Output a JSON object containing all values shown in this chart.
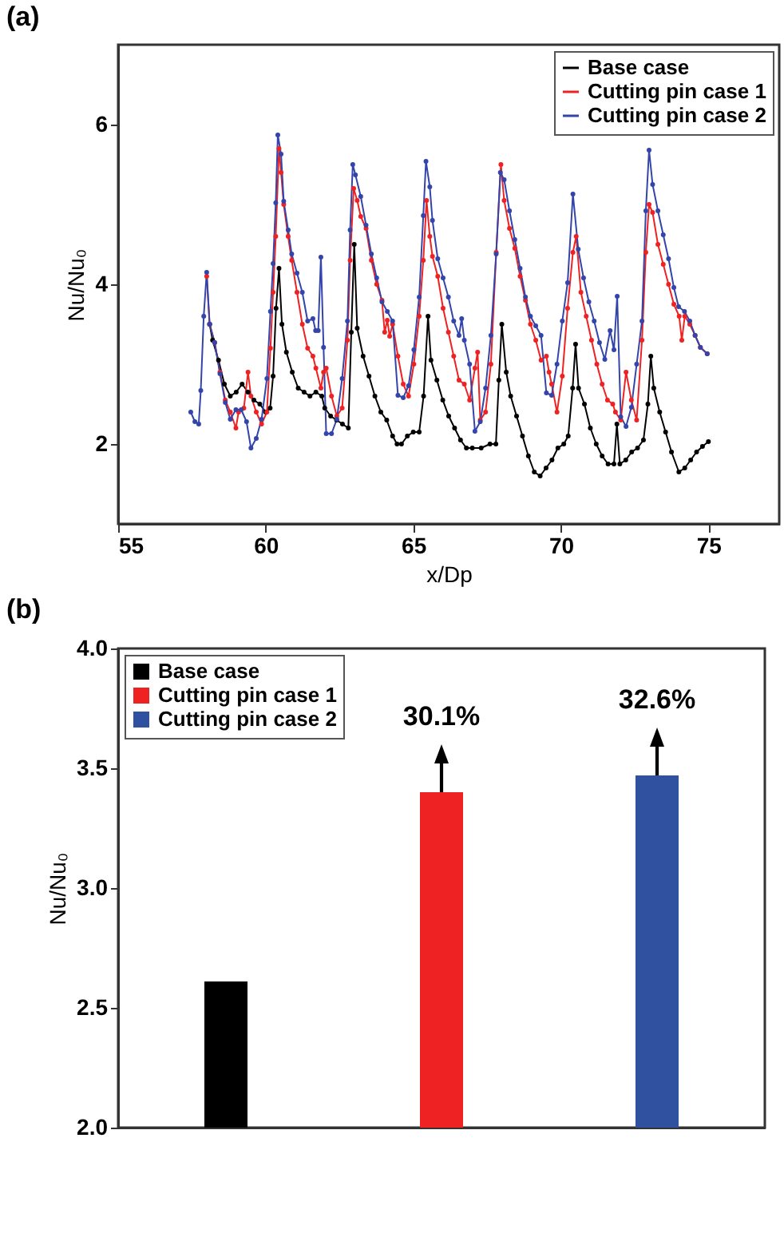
{
  "chart_data": [
    {
      "type": "line",
      "title": "(a)",
      "xlabel": "x/Dp",
      "ylabel": "Nu/Nu₀",
      "xlim": [
        55,
        77.4
      ],
      "ylim": [
        1,
        7
      ],
      "xticks": [
        55,
        60,
        65,
        70,
        75
      ],
      "yticks": [
        2,
        4,
        6
      ],
      "legend": "top right",
      "marker": "circle",
      "series": [
        {
          "name": "Base case",
          "color": "#000000",
          "x": [
            58.1,
            58.2,
            58.4,
            58.6,
            58.8,
            59.0,
            59.2,
            59.4,
            59.6,
            59.8,
            60.0,
            60.15,
            60.25,
            60.35,
            60.45,
            60.55,
            60.7,
            60.9,
            61.1,
            61.3,
            61.5,
            61.7,
            61.9,
            62.0,
            62.2,
            62.4,
            62.6,
            62.8,
            62.9,
            63.0,
            63.1,
            63.3,
            63.5,
            63.7,
            63.9,
            64.1,
            64.3,
            64.45,
            64.6,
            64.8,
            65.0,
            65.2,
            65.35,
            65.5,
            65.6,
            65.8,
            66.0,
            66.2,
            66.4,
            66.6,
            66.8,
            67.0,
            67.3,
            67.6,
            67.8,
            67.9,
            68.0,
            68.15,
            68.3,
            68.5,
            68.7,
            68.9,
            69.1,
            69.3,
            69.5,
            69.7,
            69.9,
            70.1,
            70.25,
            70.4,
            70.5,
            70.6,
            70.8,
            71.0,
            71.2,
            71.4,
            71.6,
            71.8,
            71.9,
            72.0,
            72.2,
            72.4,
            72.6,
            72.8,
            72.95,
            73.05,
            73.15,
            73.35,
            73.55,
            73.75,
            74.0,
            74.2,
            74.4,
            74.6,
            74.8,
            75.0
          ],
          "values": [
            3.5,
            3.3,
            3.05,
            2.75,
            2.6,
            2.65,
            2.75,
            2.65,
            2.55,
            2.5,
            2.4,
            2.45,
            2.85,
            3.7,
            4.2,
            3.5,
            3.15,
            2.9,
            2.7,
            2.65,
            2.6,
            2.65,
            2.6,
            2.45,
            2.35,
            2.3,
            2.25,
            2.2,
            3.4,
            4.5,
            3.45,
            3.1,
            2.85,
            2.6,
            2.4,
            2.3,
            2.1,
            2.0,
            2.0,
            2.1,
            2.15,
            2.15,
            2.6,
            3.6,
            3.05,
            2.8,
            2.55,
            2.35,
            2.2,
            2.05,
            1.95,
            1.95,
            1.95,
            2.0,
            2.0,
            2.8,
            3.5,
            2.9,
            2.6,
            2.35,
            2.1,
            1.85,
            1.65,
            1.6,
            1.7,
            1.8,
            1.95,
            2.0,
            2.1,
            2.7,
            3.25,
            2.7,
            2.5,
            2.2,
            2.0,
            1.85,
            1.75,
            1.75,
            2.25,
            1.75,
            1.8,
            1.9,
            1.95,
            2.05,
            2.5,
            3.1,
            2.7,
            2.4,
            2.15,
            1.9,
            1.65,
            1.7,
            1.8,
            1.9,
            1.97,
            2.03
          ]
        },
        {
          "name": "Cutting pin case 1",
          "color": "#ee2222",
          "x": [
            58.0,
            58.1,
            58.27,
            58.45,
            58.63,
            58.8,
            58.99,
            59.08,
            59.26,
            59.4,
            59.5,
            59.68,
            59.86,
            60.04,
            60.16,
            60.25,
            60.34,
            60.45,
            60.52,
            60.61,
            60.76,
            60.88,
            61.06,
            61.24,
            61.42,
            61.6,
            61.7,
            61.87,
            61.96,
            62.05,
            62.23,
            62.41,
            62.59,
            62.77,
            62.86,
            62.98,
            63.1,
            63.22,
            63.4,
            63.58,
            63.76,
            63.94,
            64.03,
            64.12,
            64.2,
            64.3,
            64.48,
            64.66,
            64.84,
            65.02,
            65.2,
            65.34,
            65.45,
            65.56,
            65.65,
            65.83,
            66.01,
            66.19,
            66.37,
            66.55,
            66.73,
            66.91,
            67.09,
            67.18,
            67.27,
            67.45,
            67.63,
            67.81,
            67.97,
            68.08,
            68.26,
            68.44,
            68.62,
            68.8,
            68.97,
            69.15,
            69.33,
            69.51,
            69.6,
            69.69,
            69.87,
            70.05,
            70.23,
            70.41,
            70.52,
            70.68,
            70.86,
            71.04,
            71.22,
            71.4,
            71.58,
            71.76,
            71.85,
            72.03,
            72.21,
            72.39,
            72.57,
            72.75,
            72.88,
            72.99,
            73.11,
            73.29,
            73.47,
            73.65,
            73.83,
            74.01,
            74.1,
            74.2,
            74.37,
            74.55,
            74.73,
            74.96
          ],
          "values": [
            4.1,
            3.5,
            3.27,
            2.9,
            2.55,
            2.4,
            2.2,
            2.4,
            2.45,
            2.9,
            2.6,
            2.4,
            2.25,
            2.4,
            3.2,
            3.9,
            4.6,
            5.7,
            5.4,
            5.0,
            4.6,
            4.3,
            3.9,
            3.5,
            3.2,
            3.1,
            2.95,
            2.7,
            2.9,
            2.95,
            2.6,
            2.35,
            2.45,
            3.3,
            4.3,
            5.2,
            5.05,
            4.85,
            4.7,
            4.3,
            4.0,
            3.8,
            3.4,
            3.55,
            3.35,
            3.5,
            3.1,
            2.75,
            2.6,
            3.0,
            3.6,
            4.3,
            5.05,
            4.6,
            4.35,
            4.1,
            3.7,
            3.4,
            3.1,
            2.8,
            2.75,
            2.55,
            2.95,
            3.15,
            2.3,
            2.4,
            3.0,
            4.4,
            5.5,
            5.05,
            4.7,
            4.45,
            4.1,
            3.8,
            3.5,
            3.3,
            3.05,
            3.1,
            2.9,
            2.75,
            2.4,
            2.85,
            3.7,
            4.4,
            4.6,
            3.9,
            3.6,
            3.3,
            3.0,
            2.75,
            2.55,
            2.5,
            2.4,
            2.3,
            2.9,
            2.55,
            2.3,
            3.3,
            4.4,
            5.0,
            4.9,
            4.5,
            4.25,
            4.0,
            3.75,
            3.6,
            3.3,
            3.6,
            3.5,
            3.36,
            3.21,
            3.13
          ]
        },
        {
          "name": "Cutting pin case 2",
          "color": "#3344aa",
          "x": [
            57.46,
            57.6,
            57.73,
            57.8,
            57.9,
            58.0,
            58.1,
            58.27,
            58.45,
            58.63,
            58.8,
            58.99,
            59.17,
            59.35,
            59.5,
            59.68,
            59.86,
            60.04,
            60.16,
            60.25,
            60.34,
            60.41,
            60.52,
            60.61,
            60.76,
            60.88,
            61.06,
            61.24,
            61.42,
            61.6,
            61.69,
            61.78,
            61.87,
            61.96,
            62.05,
            62.23,
            62.41,
            62.59,
            62.77,
            62.86,
            62.95,
            63.04,
            63.22,
            63.4,
            63.58,
            63.76,
            63.94,
            64.12,
            64.3,
            64.48,
            64.66,
            64.84,
            65.02,
            65.2,
            65.34,
            65.43,
            65.56,
            65.65,
            65.83,
            66.01,
            66.19,
            66.37,
            66.55,
            66.64,
            66.73,
            66.91,
            67.09,
            67.27,
            67.45,
            67.63,
            67.81,
            67.95,
            68.08,
            68.26,
            68.44,
            68.62,
            68.8,
            68.97,
            69.15,
            69.33,
            69.51,
            69.69,
            69.87,
            70.05,
            70.23,
            70.41,
            70.59,
            70.77,
            70.95,
            71.13,
            71.31,
            71.49,
            71.67,
            71.8,
            71.91,
            72.03,
            72.21,
            72.39,
            72.57,
            72.75,
            72.88,
            72.99,
            73.11,
            73.29,
            73.47,
            73.65,
            73.83,
            73.99,
            74.19,
            74.37,
            74.55,
            74.73,
            74.96
          ],
          "values": [
            2.4,
            2.28,
            2.25,
            2.67,
            3.6,
            4.15,
            3.5,
            3.27,
            2.88,
            2.52,
            2.31,
            2.43,
            2.43,
            2.28,
            1.95,
            2.07,
            2.31,
            2.82,
            3.66,
            4.26,
            5.02,
            5.87,
            5.63,
            5.04,
            4.68,
            4.38,
            4.14,
            3.9,
            3.54,
            3.57,
            3.42,
            3.42,
            4.34,
            3.21,
            2.13,
            2.13,
            2.31,
            2.82,
            3.54,
            4.68,
            5.5,
            5.37,
            5.1,
            4.74,
            4.38,
            4.08,
            3.78,
            3.66,
            3.54,
            2.61,
            2.58,
            2.73,
            3.18,
            3.84,
            4.86,
            5.54,
            5.22,
            4.8,
            4.32,
            4.08,
            3.84,
            3.54,
            3.36,
            3.57,
            3.3,
            3.0,
            2.16,
            2.28,
            2.7,
            3.36,
            4.38,
            5.4,
            5.31,
            4.92,
            4.56,
            4.2,
            3.84,
            3.6,
            3.48,
            3.36,
            2.64,
            2.61,
            3.0,
            3.54,
            4.02,
            5.13,
            4.44,
            4.08,
            3.78,
            3.54,
            3.27,
            3.06,
            3.42,
            3.18,
            3.85,
            2.34,
            2.22,
            2.46,
            3.0,
            3.54,
            4.92,
            5.68,
            5.25,
            4.92,
            4.62,
            4.32,
            3.96,
            3.72,
            3.66,
            3.54,
            3.36,
            3.21,
            3.13
          ]
        }
      ]
    },
    {
      "type": "bar",
      "title": "(b)",
      "annotations": [
        "30.1%",
        "32.6%"
      ],
      "ylabel": "Nu/Nu₀",
      "categories": [
        null,
        null,
        null
      ],
      "ylim": [
        2,
        4
      ],
      "yticks": [
        {
          "value": 2,
          "label": "2.0"
        },
        {
          "value": 2.5,
          "label": "2.5"
        },
        {
          "value": 3,
          "label": "3.0"
        },
        {
          "value": 3.5,
          "label": "3.5"
        },
        {
          "value": 4,
          "label": "4.0"
        }
      ],
      "tick_labels": "y",
      "legend": "top left",
      "series": [
        {
          "name": "Base case",
          "color": "#000000",
          "values": [
            2.61,
            null,
            null
          ]
        },
        {
          "name": "Cutting pin case 1",
          "color": "#ee2222",
          "values": [
            null,
            3.4,
            null
          ]
        },
        {
          "name": "Cutting pin case 2",
          "color": "#3050a0",
          "values": [
            null,
            null,
            3.47
          ]
        }
      ]
    }
  ]
}
